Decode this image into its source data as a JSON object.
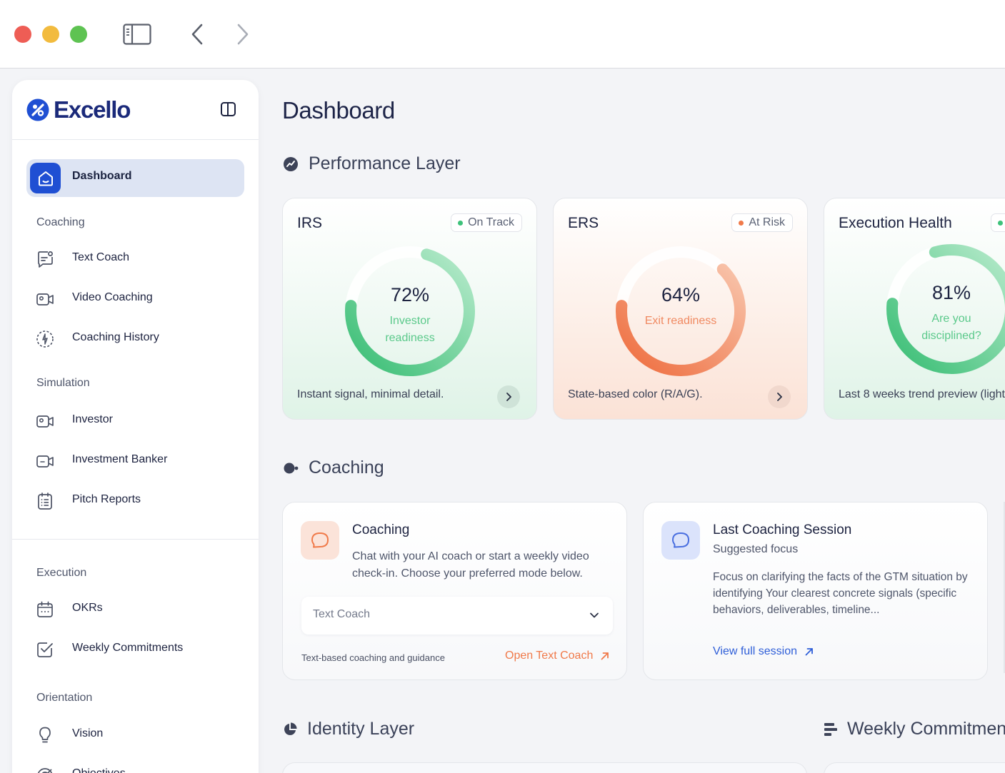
{
  "app": {
    "brand_name": "Excello"
  },
  "sidebar": {
    "active": {
      "label": "Dashboard",
      "icon": "home-icon"
    },
    "sections": [
      {
        "label": "Coaching",
        "items": [
          {
            "label": "Text Coach",
            "icon": "chat-icon"
          },
          {
            "label": "Video Coaching",
            "icon": "video-icon"
          },
          {
            "label": "Coaching History",
            "icon": "history-icon"
          }
        ]
      },
      {
        "label": "Simulation",
        "items": [
          {
            "label": "Investor",
            "icon": "video-icon"
          },
          {
            "label": "Investment Banker",
            "icon": "video-icon"
          },
          {
            "label": "Pitch Reports",
            "icon": "report-icon"
          }
        ]
      },
      {
        "label": "Execution",
        "items": [
          {
            "label": "OKRs",
            "icon": "calendar-icon"
          },
          {
            "label": "Weekly Commitments",
            "icon": "checkbox-icon"
          }
        ]
      },
      {
        "label": "Orientation",
        "items": [
          {
            "label": "Vision",
            "icon": "lightbulb-icon"
          },
          {
            "label": "Objectives",
            "icon": "target-icon"
          }
        ]
      }
    ]
  },
  "main": {
    "title": "Dashboard",
    "performance": {
      "heading": "Performance Layer",
      "cards": [
        {
          "title": "IRS",
          "status": "On Track",
          "status_color": "#3ec27a",
          "value": "72%",
          "percent": 72,
          "sub": "Investor readiness",
          "footer": "Instant signal, minimal detail.",
          "theme": "green"
        },
        {
          "title": "ERS",
          "status": "At Risk",
          "status_color": "#f07a4a",
          "value": "64%",
          "percent": 64,
          "sub": "Exit readiness",
          "footer": "State-based color (R/A/G).",
          "theme": "orange"
        },
        {
          "title": "Execution Health",
          "status": "",
          "status_color": "#3ec27a",
          "value": "81%",
          "percent": 81,
          "sub": "Are you disciplined?",
          "footer": "Last 8 weeks trend preview (light",
          "theme": "green"
        }
      ]
    },
    "coaching": {
      "heading": "Coaching",
      "coach_card": {
        "title": "Coaching",
        "description": "Chat with your AI coach or start a weekly video check-in. Choose your preferred mode below.",
        "select_value": "Text Coach",
        "note": "Text-based coaching and guidance",
        "link": "Open Text Coach"
      },
      "session_card": {
        "title": "Last Coaching Session",
        "subtitle": "Suggested focus",
        "body": "Focus on clarifying the facts of the GTM situation by identifying Your clearest concrete signals (specific behaviors, deliverables, timeline...",
        "link": "View full session"
      }
    },
    "identity": {
      "heading": "Identity Layer"
    },
    "weekly": {
      "heading": "Weekly Commitment"
    }
  },
  "colors": {
    "primary": "#1f4fd3",
    "green": "#3ec27a",
    "orange": "#f07a4a"
  }
}
